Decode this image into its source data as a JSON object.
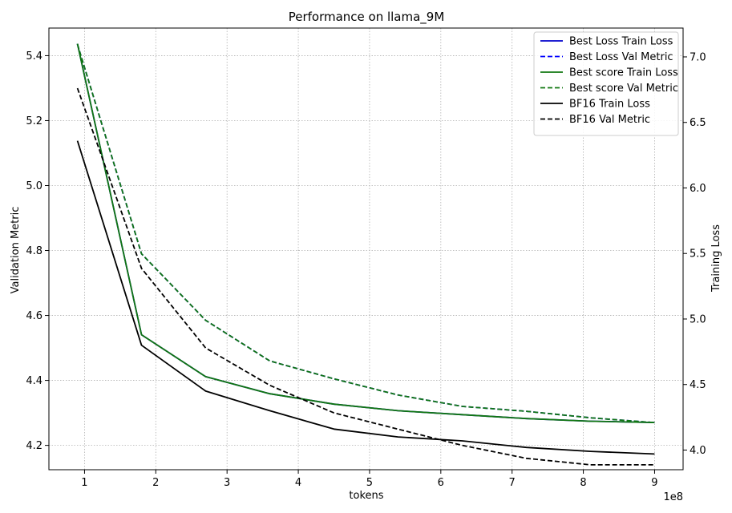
{
  "chart_data": {
    "type": "line",
    "title": "Performance on llama_9M",
    "xlabel": "tokens",
    "x_offset_label": "1e8",
    "ylabel_left": "Validation Metric",
    "ylabel_right": "Training Loss",
    "xlim": [
      0.5,
      9.4
    ],
    "ylim_left": [
      4.125,
      5.485
    ],
    "ylim_right": [
      3.85,
      7.22
    ],
    "x_ticks": [
      1,
      2,
      3,
      4,
      5,
      6,
      7,
      8,
      9
    ],
    "x_tick_labels": [
      "1",
      "2",
      "3",
      "4",
      "5",
      "6",
      "7",
      "8",
      "9"
    ],
    "y_left_ticks": [
      4.2,
      4.4,
      4.6,
      4.8,
      5.0,
      5.2,
      5.4
    ],
    "y_left_tick_labels": [
      "4.2",
      "4.4",
      "4.6",
      "4.8",
      "5.0",
      "5.2",
      "5.4"
    ],
    "y_right_ticks": [
      4.0,
      4.5,
      5.0,
      5.5,
      6.0,
      6.5,
      7.0
    ],
    "y_right_tick_labels": [
      "4.0",
      "4.5",
      "5.0",
      "5.5",
      "6.0",
      "6.5",
      "7.0"
    ],
    "grid": true,
    "legend_position": "top-right",
    "x": [
      0.9,
      1.8,
      2.7,
      3.6,
      4.5,
      5.4,
      6.3,
      7.2,
      8.1,
      9.0
    ],
    "series": [
      {
        "name": "Best Loss Train Loss",
        "axis": "right",
        "color": "#0000cc",
        "dash": false,
        "values": [
          7.1,
          4.88,
          4.56,
          4.43,
          4.35,
          4.3,
          4.27,
          4.24,
          4.22,
          4.21
        ]
      },
      {
        "name": "Best Loss Val Metric",
        "axis": "left",
        "color": "#0000ff",
        "dash": true,
        "values": [
          5.435,
          4.79,
          4.585,
          4.46,
          4.405,
          4.355,
          4.32,
          4.305,
          4.285,
          4.27
        ]
      },
      {
        "name": "Best score Train Loss",
        "axis": "right",
        "color": "#117711",
        "dash": false,
        "values": [
          7.1,
          4.88,
          4.56,
          4.43,
          4.35,
          4.3,
          4.27,
          4.24,
          4.22,
          4.21
        ]
      },
      {
        "name": "Best score Val Metric",
        "axis": "left",
        "color": "#117711",
        "dash": true,
        "values": [
          5.435,
          4.79,
          4.585,
          4.46,
          4.405,
          4.355,
          4.32,
          4.305,
          4.285,
          4.27
        ]
      },
      {
        "name": "BF16 Train Loss",
        "axis": "right",
        "color": "#000000",
        "dash": false,
        "values": [
          6.36,
          4.8,
          4.45,
          4.3,
          4.16,
          4.1,
          4.07,
          4.02,
          3.99,
          3.97
        ]
      },
      {
        "name": "BF16 Val Metric",
        "axis": "left",
        "color": "#000000",
        "dash": true,
        "values": [
          5.3,
          4.745,
          4.5,
          4.385,
          4.3,
          4.25,
          4.2,
          4.16,
          4.14,
          4.14
        ]
      }
    ]
  }
}
